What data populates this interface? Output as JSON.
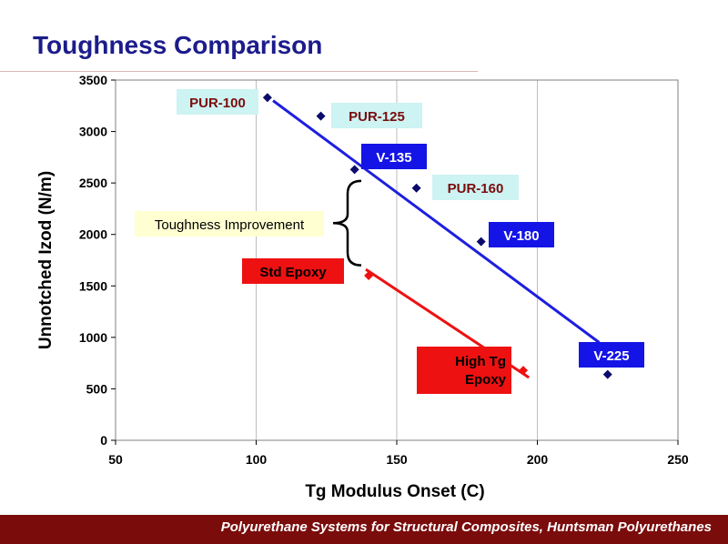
{
  "slide": {
    "title": "Toughness Comparison",
    "footer": "Polyurethane Systems for Structural Composites, Huntsman Polyurethanes"
  },
  "colors": {
    "title": "#1c1c8c",
    "marker": "#0b0b6b",
    "pur_label_bg": "#cdf3f3",
    "pur_label_text": "#7a0c0c",
    "v_label_bg": "#1414e6",
    "v_label_text": "#ffffff",
    "blue_trend": "#1e1ee0",
    "red_trend": "#ee1111",
    "epoxy_label_bg": "#ee1111",
    "epoxy_label_text": "#000000",
    "toughness_bg": "#ffffd2",
    "footer_bg": "#7a0c0c"
  },
  "chart_data": {
    "type": "scatter",
    "xlabel": "Tg Modulus Onset (C)",
    "ylabel": "Unnotched Izod (N/m)",
    "xlim": [
      50,
      250
    ],
    "ylim": [
      0,
      3500
    ],
    "x_ticks": [
      50,
      100,
      150,
      200,
      250
    ],
    "y_ticks": [
      0,
      500,
      1000,
      1500,
      2000,
      2500,
      3000,
      3500
    ],
    "grid": "vertical",
    "series": [
      {
        "name": "",
        "points": [
          {
            "label": "PUR-100",
            "x": 104,
            "y": 3330,
            "group": "PUR"
          },
          {
            "label": "PUR-125",
            "x": 123,
            "y": 3150,
            "group": "PUR"
          },
          {
            "label": "V-135",
            "x": 135,
            "y": 2630,
            "group": "V"
          },
          {
            "label": "PUR-160",
            "x": 157,
            "y": 2450,
            "group": "PUR"
          },
          {
            "label": "V-180",
            "x": 180,
            "y": 1930,
            "group": "V"
          },
          {
            "label": "V-225",
            "x": 225,
            "y": 640,
            "group": "V"
          }
        ]
      },
      {
        "name": "",
        "points": [
          {
            "label": "Std Epoxy",
            "x": 140,
            "y": 1600,
            "group": "Epoxy"
          },
          {
            "label": "High Tg Epoxy",
            "x": 195,
            "y": 680,
            "group": "Epoxy"
          }
        ]
      }
    ],
    "trend_lines": [
      {
        "from": [
          106,
          3300
        ],
        "to": [
          222,
          950
        ],
        "color": "blue"
      },
      {
        "from": [
          139,
          1660
        ],
        "to": [
          197,
          610
        ],
        "color": "red"
      }
    ],
    "annotations": [
      {
        "text": "Toughness Improvement",
        "brace_y": [
          1700,
          2520
        ],
        "x": 138
      }
    ]
  }
}
